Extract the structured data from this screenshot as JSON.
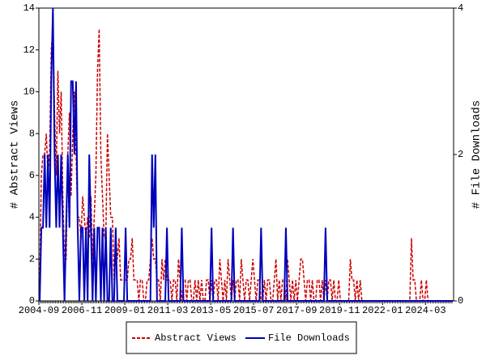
{
  "chart_data": {
    "type": "line",
    "categories": [
      "2004-09",
      null,
      null,
      null,
      null,
      null,
      null,
      null,
      null,
      null,
      null,
      null,
      null,
      null,
      null,
      null,
      null,
      null,
      null,
      null,
      null,
      null,
      null,
      null,
      null,
      null,
      "2006-11",
      null,
      null,
      null,
      null,
      null,
      null,
      null,
      null,
      null,
      null,
      null,
      null,
      null,
      null,
      null,
      null,
      null,
      null,
      null,
      null,
      null,
      null,
      null,
      null,
      null,
      "2009-01",
      null,
      null,
      null,
      null,
      null,
      null,
      null,
      null,
      null,
      null,
      null,
      null,
      null,
      null,
      null,
      null,
      null,
      null,
      null,
      null,
      null,
      null,
      null,
      null,
      null,
      "2011-03",
      null,
      null,
      null,
      null,
      null,
      null,
      null,
      null,
      null,
      null,
      null,
      null,
      null,
      null,
      null,
      null,
      null,
      null,
      null,
      null,
      null,
      null,
      null,
      null,
      null,
      "2013-05",
      null,
      null,
      null,
      null,
      null,
      null,
      null,
      null,
      null,
      null,
      null,
      null,
      null,
      null,
      null,
      null,
      null,
      null,
      null,
      null,
      null,
      null,
      null,
      null,
      null,
      "2015-07",
      null,
      null,
      null,
      null,
      null,
      null,
      null,
      null,
      null,
      null,
      null,
      null,
      null,
      null,
      null,
      null,
      null,
      null,
      null,
      null,
      null,
      null,
      null,
      null,
      null,
      "2017-09",
      null,
      null,
      null,
      null,
      null,
      null,
      null,
      null,
      null,
      null,
      null,
      null,
      null,
      null,
      null,
      null,
      null,
      null,
      null,
      null,
      null,
      null,
      null,
      null,
      null,
      "2019-11",
      null,
      null,
      null,
      null,
      null,
      null,
      null,
      null,
      null,
      null,
      null,
      null,
      null,
      null,
      null,
      null,
      null,
      null,
      null,
      null,
      null,
      null,
      null,
      null,
      null,
      "2022-01",
      null,
      null,
      null,
      null,
      null,
      null,
      null,
      null,
      null,
      null,
      null,
      null,
      null,
      null,
      null,
      null,
      null,
      null,
      null,
      null,
      null,
      null,
      null,
      null,
      null,
      "2024-03",
      null,
      null,
      null,
      null,
      null,
      null,
      null,
      null,
      null,
      null,
      null,
      null,
      null,
      null,
      null,
      null
    ],
    "series": [
      {
        "name": "Abstract Views",
        "color": "#cc0000",
        "dashed": true,
        "axis": "y",
        "values": [
          1,
          6,
          7,
          7,
          8,
          6,
          7,
          12,
          13,
          9,
          6,
          11,
          8,
          10,
          5,
          2,
          2,
          7,
          9,
          5,
          8,
          10,
          7,
          4,
          4,
          3,
          5,
          4,
          3,
          4,
          3,
          5,
          2,
          4,
          6,
          11,
          13,
          7,
          5,
          3,
          3,
          8,
          6,
          4,
          4,
          1,
          3,
          2,
          3,
          1,
          1,
          1,
          1,
          1,
          2,
          2,
          3,
          1,
          1,
          1,
          0,
          1,
          1,
          0,
          0,
          1,
          1,
          2,
          3,
          2,
          2,
          1,
          1,
          0,
          2,
          1,
          2,
          1,
          1,
          1,
          0,
          1,
          1,
          0,
          2,
          1,
          0,
          1,
          1,
          0,
          1,
          1,
          0,
          0,
          1,
          0,
          1,
          0,
          1,
          0,
          0,
          1,
          1,
          0,
          1,
          0,
          1,
          1,
          0,
          2,
          1,
          0,
          1,
          0,
          2,
          1,
          0,
          1,
          0,
          1,
          1,
          0,
          2,
          1,
          0,
          1,
          1,
          0,
          1,
          2,
          1,
          0,
          1,
          1,
          0,
          0,
          1,
          0,
          1,
          1,
          0,
          0,
          1,
          2,
          0,
          1,
          0,
          1,
          1,
          0,
          2,
          1,
          0,
          1,
          0,
          1,
          0,
          1,
          2,
          2,
          1,
          0,
          1,
          1,
          0,
          1,
          0,
          0,
          1,
          1,
          0,
          1,
          0,
          1,
          0,
          1,
          1,
          0,
          1,
          0,
          0,
          1,
          0,
          0,
          0,
          0,
          0,
          0,
          2,
          1,
          1,
          0,
          1,
          0,
          1,
          0,
          0,
          0,
          0,
          0,
          0,
          0,
          0,
          0,
          0,
          0,
          0,
          0,
          0,
          0,
          0,
          0,
          0,
          0,
          0,
          0,
          0,
          0,
          0,
          0,
          0,
          0,
          0,
          0,
          0,
          3,
          1,
          1,
          0,
          0,
          0,
          1,
          0,
          0,
          1,
          0,
          0,
          0,
          0,
          0,
          0,
          0,
          0,
          0,
          0,
          0,
          0,
          0,
          0,
          0,
          0
        ]
      },
      {
        "name": "File Downloads",
        "color": "#0000bb",
        "dashed": false,
        "axis": "y2",
        "values": [
          0,
          1,
          1,
          2,
          1,
          2,
          1,
          3,
          4,
          2,
          1,
          2,
          1,
          2,
          1,
          0,
          1,
          2,
          1,
          3,
          3,
          2,
          3,
          1,
          0,
          1,
          1,
          0,
          1,
          0,
          2,
          1,
          0,
          1,
          0,
          1,
          1,
          0,
          1,
          0,
          1,
          0,
          0,
          1,
          0,
          0,
          1,
          0,
          0,
          0,
          0,
          0,
          1,
          0,
          0,
          0,
          0,
          0,
          0,
          0,
          0,
          0,
          0,
          0,
          0,
          0,
          0,
          0,
          2,
          1,
          2,
          0,
          0,
          0,
          0,
          0,
          0,
          1,
          0,
          0,
          0,
          0,
          0,
          0,
          0,
          0,
          1,
          0,
          0,
          0,
          0,
          0,
          0,
          0,
          0,
          0,
          0,
          0,
          0,
          0,
          0,
          0,
          0,
          0,
          1,
          0,
          0,
          0,
          0,
          0,
          0,
          0,
          0,
          0,
          0,
          0,
          0,
          1,
          0,
          0,
          0,
          0,
          0,
          0,
          0,
          0,
          0,
          0,
          0,
          0,
          0,
          0,
          0,
          0,
          1,
          0,
          0,
          0,
          0,
          0,
          0,
          0,
          0,
          0,
          0,
          0,
          0,
          0,
          0,
          1,
          0,
          0,
          0,
          0,
          0,
          0,
          0,
          0,
          0,
          0,
          0,
          0,
          0,
          0,
          0,
          0,
          0,
          0,
          0,
          0,
          0,
          0,
          0,
          1,
          0,
          0,
          0,
          0,
          0,
          0,
          0,
          0,
          0,
          0,
          0,
          0,
          0,
          0,
          0,
          0,
          0,
          0,
          0,
          0,
          0,
          0,
          0,
          0,
          0,
          0,
          0,
          0,
          0,
          0,
          0,
          0,
          0,
          0,
          0,
          0,
          0,
          0,
          0,
          0,
          0,
          0,
          0,
          0,
          0,
          0,
          0,
          0,
          0,
          0,
          0,
          0,
          0,
          0,
          0,
          0,
          0,
          0,
          0,
          0,
          0,
          0,
          0,
          0,
          0,
          0,
          0,
          0,
          0,
          0,
          0,
          0,
          0,
          0,
          0,
          0,
          0
        ]
      }
    ],
    "ylabel": "# Abstract Views",
    "y2label": "# File Downloads",
    "ylim": [
      0,
      14
    ],
    "yticks": [
      0,
      2,
      4,
      6,
      8,
      10,
      12,
      14
    ],
    "y2lim": [
      0,
      4
    ],
    "y2ticks": [
      0,
      2,
      4
    ],
    "legend": "bottom"
  }
}
